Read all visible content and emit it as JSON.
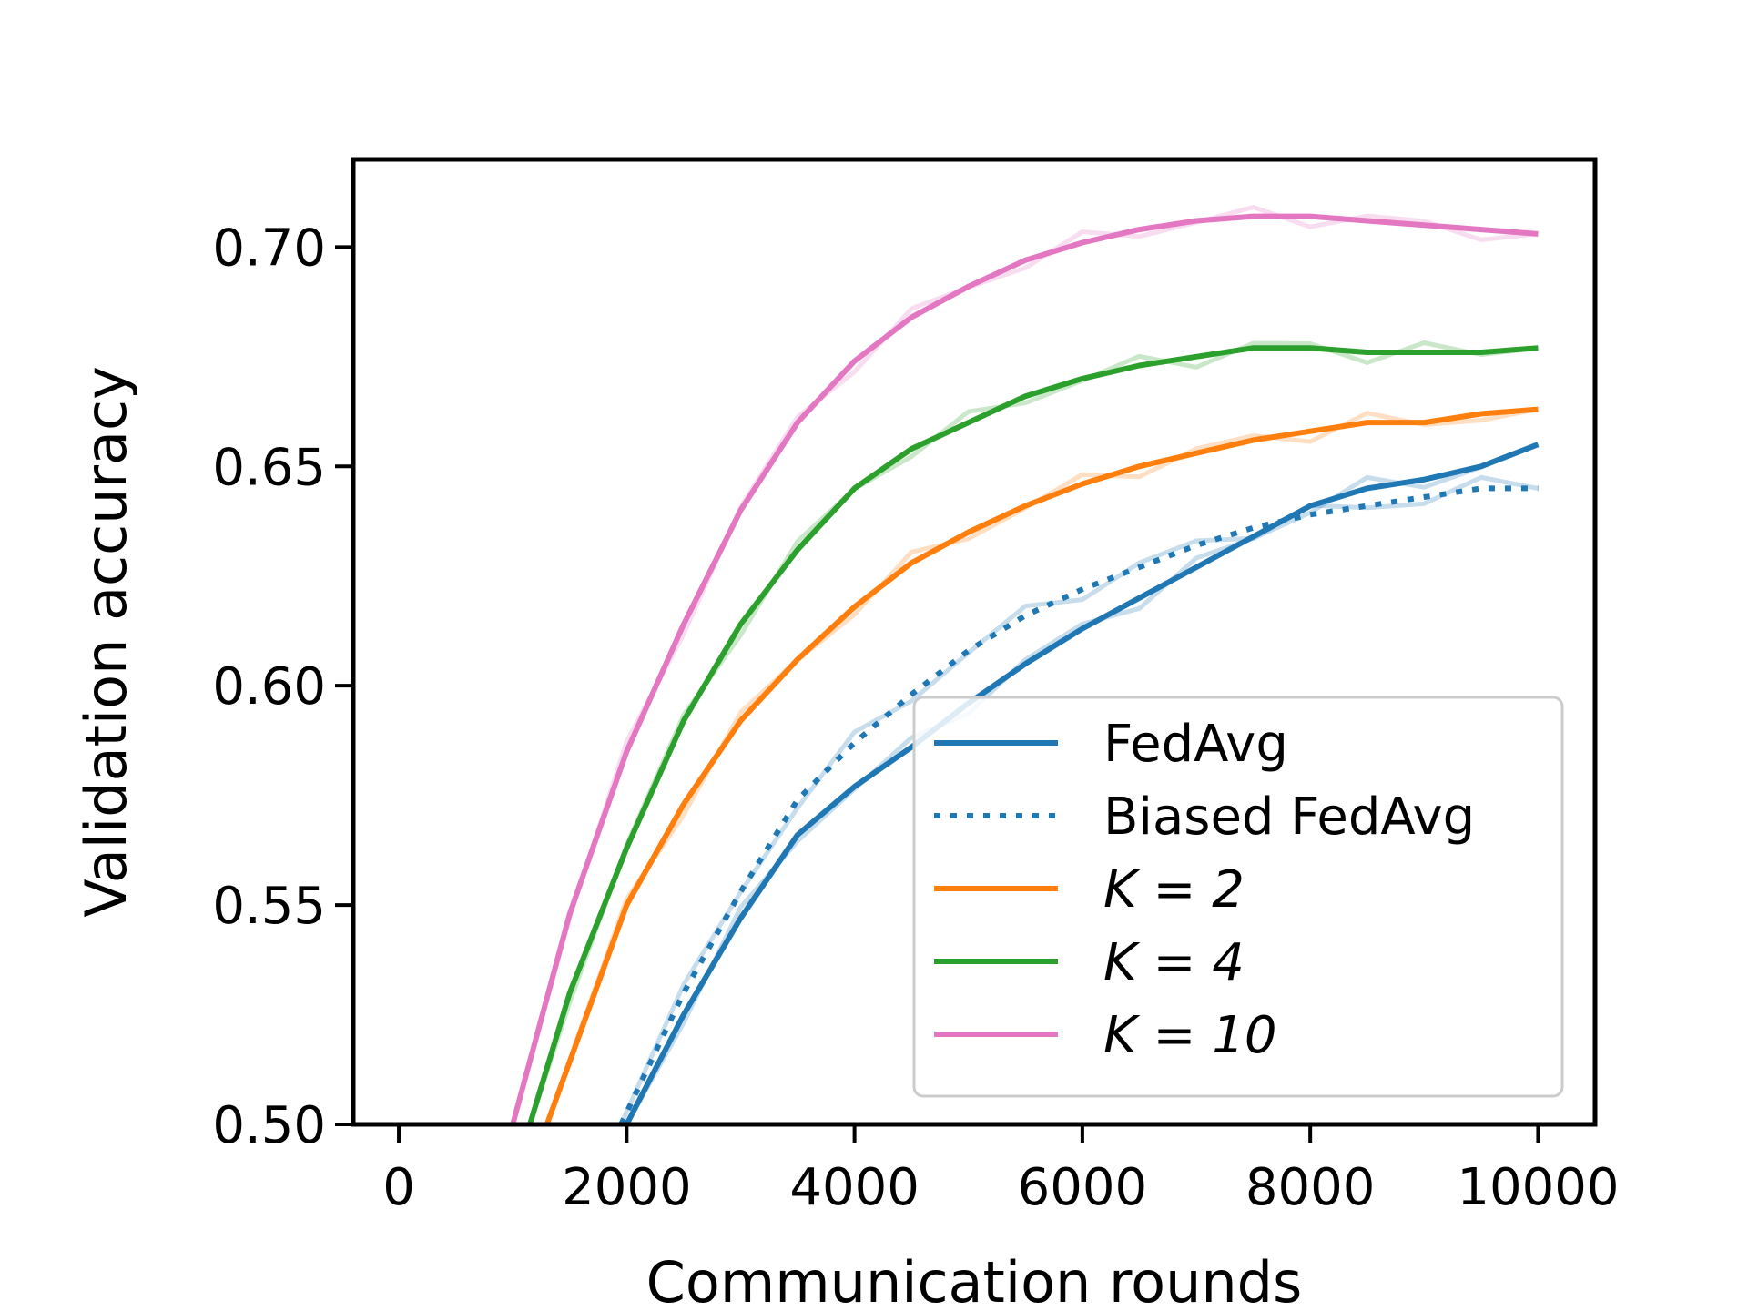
{
  "chart_data": {
    "type": "line",
    "title": "",
    "xlabel": "Communication rounds",
    "ylabel": "Validation accuracy",
    "xlim": [
      -400,
      10500
    ],
    "ylim": [
      0.5,
      0.72
    ],
    "xticks": [
      0,
      2000,
      4000,
      6000,
      8000,
      10000
    ],
    "xtick_labels": [
      "0",
      "2000",
      "4000",
      "6000",
      "8000",
      "10000"
    ],
    "yticks": [
      0.5,
      0.55,
      0.6,
      0.65,
      0.7
    ],
    "ytick_labels": [
      "0.50",
      "0.55",
      "0.60",
      "0.65",
      "0.70"
    ],
    "legend_position": "lower-right",
    "series": [
      {
        "name": "FedAvg",
        "legend_label": "FedAvg",
        "italic_k": false,
        "color": "#1f77b4",
        "style": "solid",
        "x": [
          2000,
          2500,
          3000,
          3500,
          4000,
          4500,
          5000,
          5500,
          6000,
          6500,
          7000,
          7500,
          8000,
          8500,
          9000,
          9500,
          10000
        ],
        "values": [
          0.5,
          0.525,
          0.547,
          0.566,
          0.577,
          0.586,
          0.596,
          0.605,
          0.613,
          0.62,
          0.627,
          0.634,
          0.641,
          0.645,
          0.647,
          0.65,
          0.655
        ]
      },
      {
        "name": "Biased FedAvg",
        "legend_label": "Biased FedAvg",
        "italic_k": false,
        "color": "#1f77b4",
        "style": "dotted",
        "x": [
          1950,
          2500,
          3000,
          3500,
          4000,
          4500,
          5000,
          5500,
          6000,
          6500,
          7000,
          7500,
          8000,
          8500,
          9000,
          9500,
          10000
        ],
        "values": [
          0.5,
          0.53,
          0.553,
          0.574,
          0.587,
          0.598,
          0.608,
          0.616,
          0.622,
          0.627,
          0.632,
          0.636,
          0.639,
          0.641,
          0.643,
          0.645,
          0.645
        ]
      },
      {
        "name": "K = 2",
        "legend_label": "K = 2",
        "italic_k": true,
        "color": "#ff7f0e",
        "style": "solid",
        "x": [
          1300,
          2000,
          2500,
          3000,
          3500,
          4000,
          4500,
          5000,
          5500,
          6000,
          6500,
          7000,
          7500,
          8000,
          8500,
          9000,
          9500,
          10000
        ],
        "values": [
          0.5,
          0.55,
          0.573,
          0.592,
          0.606,
          0.618,
          0.628,
          0.635,
          0.641,
          0.646,
          0.65,
          0.653,
          0.656,
          0.658,
          0.66,
          0.66,
          0.662,
          0.663
        ]
      },
      {
        "name": "K = 4",
        "legend_label": "K = 4",
        "italic_k": true,
        "color": "#2ca02c",
        "style": "solid",
        "x": [
          1150,
          1500,
          2000,
          2500,
          3000,
          3500,
          4000,
          4500,
          5000,
          5500,
          6000,
          6500,
          7000,
          7500,
          8000,
          8500,
          9000,
          9500,
          10000
        ],
        "values": [
          0.5,
          0.53,
          0.563,
          0.592,
          0.614,
          0.631,
          0.645,
          0.654,
          0.66,
          0.666,
          0.67,
          0.673,
          0.675,
          0.677,
          0.677,
          0.676,
          0.676,
          0.676,
          0.677
        ]
      },
      {
        "name": "K = 10",
        "legend_label": "K = 10",
        "italic_k": true,
        "color": "#e377c2",
        "style": "solid",
        "x": [
          1000,
          1500,
          2000,
          2500,
          3000,
          3500,
          4000,
          4500,
          5000,
          5500,
          6000,
          6500,
          7000,
          7500,
          8000,
          8500,
          9000,
          9500,
          10000
        ],
        "values": [
          0.5,
          0.548,
          0.585,
          0.614,
          0.64,
          0.66,
          0.674,
          0.684,
          0.691,
          0.697,
          0.701,
          0.704,
          0.706,
          0.707,
          0.707,
          0.706,
          0.705,
          0.704,
          0.703
        ]
      }
    ]
  }
}
